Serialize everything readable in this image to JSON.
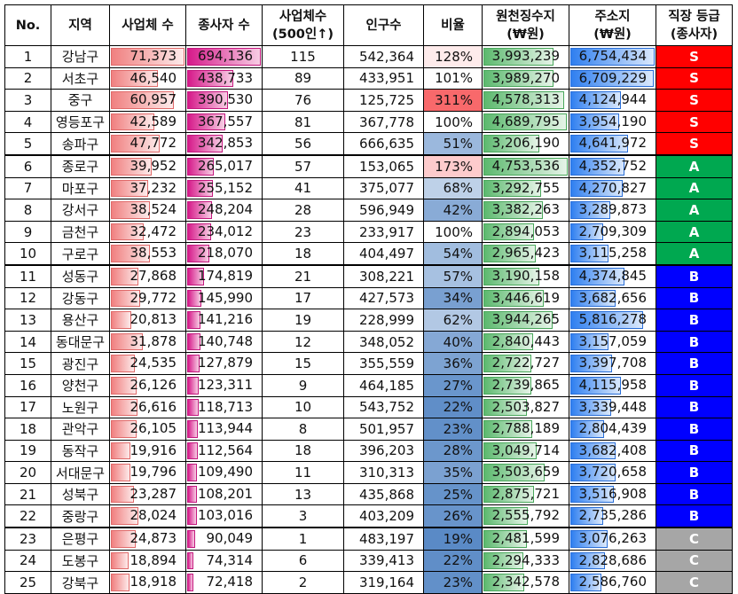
{
  "headers": {
    "no": "No.",
    "district": "지역",
    "businesses": "사업체 수",
    "employees": "종사자 수",
    "big_line1": "사업체수",
    "big_line2": "(500인↑)",
    "population": "인구수",
    "ratio": "비율",
    "withhold_line1": "원천징수지",
    "withhold_line2": "(₩원)",
    "address_line1": "주소지",
    "address_line2": "(₩원)",
    "grade_line1": "직장 등급",
    "grade_line2": "(종사자)"
  },
  "scales": {
    "businesses_max": 71373,
    "employees_max": 694136,
    "withhold_max": 4753536,
    "address_max": 6754434
  },
  "rows": [
    {
      "no": "1",
      "district": "강남구",
      "businesses": 71373,
      "businesses_text": "71,373",
      "employees": 694136,
      "employees_text": "694,136",
      "big": "115",
      "population": "542,364",
      "ratio": 128,
      "ratio_text": "128%",
      "withhold": 3993239,
      "withhold_text": "3,993,239",
      "address": 6754434,
      "address_text": "6,754,434",
      "grade": "S"
    },
    {
      "no": "2",
      "district": "서초구",
      "businesses": 46540,
      "businesses_text": "46,540",
      "employees": 438733,
      "employees_text": "438,733",
      "big": "89",
      "population": "433,951",
      "ratio": 101,
      "ratio_text": "101%",
      "withhold": 3989270,
      "withhold_text": "3,989,270",
      "address": 6709229,
      "address_text": "6,709,229",
      "grade": "S"
    },
    {
      "no": "3",
      "district": "중구",
      "businesses": 60957,
      "businesses_text": "60,957",
      "employees": 390530,
      "employees_text": "390,530",
      "big": "76",
      "population": "125,725",
      "ratio": 311,
      "ratio_text": "311%",
      "withhold": 4578313,
      "withhold_text": "4,578,313",
      "address": 4124944,
      "address_text": "4,124,944",
      "grade": "S"
    },
    {
      "no": "4",
      "district": "영등포구",
      "businesses": 42589,
      "businesses_text": "42,589",
      "employees": 367557,
      "employees_text": "367,557",
      "big": "81",
      "population": "367,778",
      "ratio": 100,
      "ratio_text": "100%",
      "withhold": 4689795,
      "withhold_text": "4,689,795",
      "address": 3954190,
      "address_text": "3,954,190",
      "grade": "S"
    },
    {
      "no": "5",
      "district": "송파구",
      "businesses": 47772,
      "businesses_text": "47,772",
      "employees": 342853,
      "employees_text": "342,853",
      "big": "56",
      "population": "666,635",
      "ratio": 51,
      "ratio_text": "51%",
      "withhold": 3206190,
      "withhold_text": "3,206,190",
      "address": 4641972,
      "address_text": "4,641,972",
      "grade": "S"
    },
    {
      "no": "6",
      "district": "종로구",
      "businesses": 39952,
      "businesses_text": "39,952",
      "employees": 265017,
      "employees_text": "265,017",
      "big": "57",
      "population": "153,065",
      "ratio": 173,
      "ratio_text": "173%",
      "withhold": 4753536,
      "withhold_text": "4,753,536",
      "address": 4352752,
      "address_text": "4,352,752",
      "grade": "A"
    },
    {
      "no": "7",
      "district": "마포구",
      "businesses": 37232,
      "businesses_text": "37,232",
      "employees": 255152,
      "employees_text": "255,152",
      "big": "41",
      "population": "375,077",
      "ratio": 68,
      "ratio_text": "68%",
      "withhold": 3292755,
      "withhold_text": "3,292,755",
      "address": 4270827,
      "address_text": "4,270,827",
      "grade": "A"
    },
    {
      "no": "8",
      "district": "강서구",
      "businesses": 38524,
      "businesses_text": "38,524",
      "employees": 248204,
      "employees_text": "248,204",
      "big": "28",
      "population": "596,949",
      "ratio": 42,
      "ratio_text": "42%",
      "withhold": 3382263,
      "withhold_text": "3,382,263",
      "address": 3289873,
      "address_text": "3,289,873",
      "grade": "A"
    },
    {
      "no": "9",
      "district": "금천구",
      "businesses": 32472,
      "businesses_text": "32,472",
      "employees": 234012,
      "employees_text": "234,012",
      "big": "23",
      "population": "233,917",
      "ratio": 100,
      "ratio_text": "100%",
      "withhold": 2894053,
      "withhold_text": "2,894,053",
      "address": 2709309,
      "address_text": "2,709,309",
      "grade": "A"
    },
    {
      "no": "10",
      "district": "구로구",
      "businesses": 38553,
      "businesses_text": "38,553",
      "employees": 218070,
      "employees_text": "218,070",
      "big": "18",
      "population": "404,497",
      "ratio": 54,
      "ratio_text": "54%",
      "withhold": 2965423,
      "withhold_text": "2,965,423",
      "address": 3115258,
      "address_text": "3,115,258",
      "grade": "A"
    },
    {
      "no": "11",
      "district": "성동구",
      "businesses": 27868,
      "businesses_text": "27,868",
      "employees": 174819,
      "employees_text": "174,819",
      "big": "21",
      "population": "308,221",
      "ratio": 57,
      "ratio_text": "57%",
      "withhold": 3190158,
      "withhold_text": "3,190,158",
      "address": 4374845,
      "address_text": "4,374,845",
      "grade": "B"
    },
    {
      "no": "12",
      "district": "강동구",
      "businesses": 29772,
      "businesses_text": "29,772",
      "employees": 145990,
      "employees_text": "145,990",
      "big": "17",
      "population": "427,573",
      "ratio": 34,
      "ratio_text": "34%",
      "withhold": 3446619,
      "withhold_text": "3,446,619",
      "address": 3682656,
      "address_text": "3,682,656",
      "grade": "B"
    },
    {
      "no": "13",
      "district": "용산구",
      "businesses": 20813,
      "businesses_text": "20,813",
      "employees": 141216,
      "employees_text": "141,216",
      "big": "19",
      "population": "228,999",
      "ratio": 62,
      "ratio_text": "62%",
      "withhold": 3944265,
      "withhold_text": "3,944,265",
      "address": 5816278,
      "address_text": "5,816,278",
      "grade": "B"
    },
    {
      "no": "14",
      "district": "동대문구",
      "businesses": 31878,
      "businesses_text": "31,878",
      "employees": 140748,
      "employees_text": "140,748",
      "big": "12",
      "population": "348,052",
      "ratio": 40,
      "ratio_text": "40%",
      "withhold": 2840443,
      "withhold_text": "2,840,443",
      "address": 3157059,
      "address_text": "3,157,059",
      "grade": "B"
    },
    {
      "no": "15",
      "district": "광진구",
      "businesses": 24535,
      "businesses_text": "24,535",
      "employees": 127879,
      "employees_text": "127,879",
      "big": "15",
      "population": "355,559",
      "ratio": 36,
      "ratio_text": "36%",
      "withhold": 2722727,
      "withhold_text": "2,722,727",
      "address": 3397708,
      "address_text": "3,397,708",
      "grade": "B"
    },
    {
      "no": "16",
      "district": "양천구",
      "businesses": 26126,
      "businesses_text": "26,126",
      "employees": 123311,
      "employees_text": "123,311",
      "big": "9",
      "population": "464,185",
      "ratio": 27,
      "ratio_text": "27%",
      "withhold": 2739865,
      "withhold_text": "2,739,865",
      "address": 4115958,
      "address_text": "4,115,958",
      "grade": "B"
    },
    {
      "no": "17",
      "district": "노원구",
      "businesses": 26616,
      "businesses_text": "26,616",
      "employees": 118713,
      "employees_text": "118,713",
      "big": "10",
      "population": "543,752",
      "ratio": 22,
      "ratio_text": "22%",
      "withhold": 2503827,
      "withhold_text": "2,503,827",
      "address": 3339448,
      "address_text": "3,339,448",
      "grade": "B"
    },
    {
      "no": "18",
      "district": "관악구",
      "businesses": 26105,
      "businesses_text": "26,105",
      "employees": 113944,
      "employees_text": "113,944",
      "big": "8",
      "population": "501,957",
      "ratio": 23,
      "ratio_text": "23%",
      "withhold": 2788189,
      "withhold_text": "2,788,189",
      "address": 2804439,
      "address_text": "2,804,439",
      "grade": "B"
    },
    {
      "no": "19",
      "district": "동작구",
      "businesses": 19916,
      "businesses_text": "19,916",
      "employees": 112564,
      "employees_text": "112,564",
      "big": "18",
      "population": "396,203",
      "ratio": 28,
      "ratio_text": "28%",
      "withhold": 3049714,
      "withhold_text": "3,049,714",
      "address": 3682408,
      "address_text": "3,682,408",
      "grade": "B"
    },
    {
      "no": "20",
      "district": "서대문구",
      "businesses": 19796,
      "businesses_text": "19,796",
      "employees": 109490,
      "employees_text": "109,490",
      "big": "11",
      "population": "310,313",
      "ratio": 35,
      "ratio_text": "35%",
      "withhold": 3503659,
      "withhold_text": "3,503,659",
      "address": 3720658,
      "address_text": "3,720,658",
      "grade": "B"
    },
    {
      "no": "21",
      "district": "성북구",
      "businesses": 23287,
      "businesses_text": "23,287",
      "employees": 108201,
      "employees_text": "108,201",
      "big": "13",
      "population": "435,868",
      "ratio": 25,
      "ratio_text": "25%",
      "withhold": 2875721,
      "withhold_text": "2,875,721",
      "address": 3516908,
      "address_text": "3,516,908",
      "grade": "B"
    },
    {
      "no": "22",
      "district": "중랑구",
      "businesses": 28024,
      "businesses_text": "28,024",
      "employees": 103016,
      "employees_text": "103,016",
      "big": "3",
      "population": "403,209",
      "ratio": 26,
      "ratio_text": "26%",
      "withhold": 2555792,
      "withhold_text": "2,555,792",
      "address": 2735286,
      "address_text": "2,735,286",
      "grade": "B"
    },
    {
      "no": "23",
      "district": "은평구",
      "businesses": 24873,
      "businesses_text": "24,873",
      "employees": 90049,
      "employees_text": "90,049",
      "big": "1",
      "population": "483,197",
      "ratio": 19,
      "ratio_text": "19%",
      "withhold": 2481599,
      "withhold_text": "2,481,599",
      "address": 3076263,
      "address_text": "3,076,263",
      "grade": "C"
    },
    {
      "no": "24",
      "district": "도봉구",
      "businesses": 18894,
      "businesses_text": "18,894",
      "employees": 74314,
      "employees_text": "74,314",
      "big": "6",
      "population": "339,413",
      "ratio": 22,
      "ratio_text": "22%",
      "withhold": 2294333,
      "withhold_text": "2,294,333",
      "address": 2828686,
      "address_text": "2,828,686",
      "grade": "C"
    },
    {
      "no": "25",
      "district": "강북구",
      "businesses": 18918,
      "businesses_text": "18,918",
      "employees": 72418,
      "employees_text": "72,418",
      "big": "2",
      "population": "319,164",
      "ratio": 23,
      "ratio_text": "23%",
      "withhold": 2342578,
      "withhold_text": "2,342,578",
      "address": 2586760,
      "address_text": "2,586,760",
      "grade": "C"
    }
  ],
  "colors": {
    "ratio_high": "#f8696b",
    "ratio_mid": "#ffffff",
    "ratio_low": "#5a8ac6"
  }
}
